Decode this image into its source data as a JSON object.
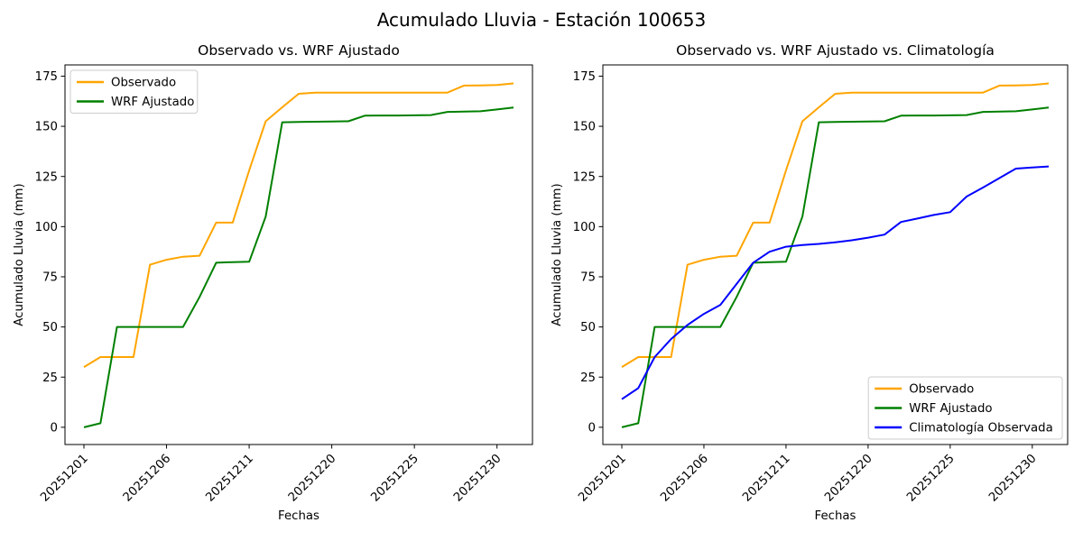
{
  "figure": {
    "suptitle": "Acumulado Lluvia - Estación 100653"
  },
  "chart_data": [
    {
      "type": "line",
      "title": "Observado vs. WRF Ajustado",
      "xlabel": "Fechas",
      "ylabel": "Acumulado Lluvia (mm)",
      "n_points": 27,
      "ylim": [
        -8.6,
        180.6
      ],
      "y_ticks": [
        0,
        25,
        50,
        75,
        100,
        125,
        150,
        175
      ],
      "x_tick_indices": [
        0,
        5,
        10,
        15,
        20,
        25
      ],
      "x_tick_labels": [
        "20251201",
        "20251206",
        "20251211",
        "20251220",
        "20251225",
        "20251230"
      ],
      "grid": false,
      "legend_position": "upper-left",
      "series": [
        {
          "name": "Observado",
          "color": "#FFA500",
          "values": [
            30,
            35,
            35,
            35,
            81,
            83.5,
            85,
            85.5,
            102,
            102,
            128,
            152.5,
            159.5,
            166.2,
            166.8,
            166.8,
            166.8,
            166.8,
            166.8,
            166.8,
            166.8,
            166.8,
            166.8,
            170.3,
            170.4,
            170.6,
            171.4
          ]
        },
        {
          "name": "WRF Ajustado",
          "color": "#008000",
          "values": [
            0,
            2,
            50,
            50,
            50,
            50,
            50,
            65,
            82,
            82.3,
            82.5,
            105,
            152,
            152.2,
            152.3,
            152.4,
            152.5,
            155.3,
            155.4,
            155.4,
            155.5,
            155.6,
            157.2,
            157.3,
            157.5,
            158.4,
            159.4
          ]
        }
      ]
    },
    {
      "type": "line",
      "title": "Observado vs. WRF Ajustado vs. Climatología",
      "xlabel": "Fechas",
      "ylabel": "Acumulado Lluvia (mm)",
      "n_points": 27,
      "ylim": [
        -8.6,
        180.6
      ],
      "y_ticks": [
        0,
        25,
        50,
        75,
        100,
        125,
        150,
        175
      ],
      "x_tick_indices": [
        0,
        5,
        10,
        15,
        20,
        25
      ],
      "x_tick_labels": [
        "20251201",
        "20251206",
        "20251211",
        "20251220",
        "20251225",
        "20251230"
      ],
      "grid": false,
      "legend_position": "lower-right",
      "series": [
        {
          "name": "Observado",
          "color": "#FFA500",
          "values": [
            30,
            35,
            35,
            35,
            81,
            83.5,
            85,
            85.5,
            102,
            102,
            128,
            152.5,
            159.5,
            166.2,
            166.8,
            166.8,
            166.8,
            166.8,
            166.8,
            166.8,
            166.8,
            166.8,
            166.8,
            170.3,
            170.4,
            170.6,
            171.4
          ]
        },
        {
          "name": "WRF Ajustado",
          "color": "#008000",
          "values": [
            0,
            2,
            50,
            50,
            50,
            50,
            50,
            65,
            82,
            82.3,
            82.5,
            105,
            152,
            152.2,
            152.3,
            152.4,
            152.5,
            155.3,
            155.4,
            155.4,
            155.5,
            155.6,
            157.2,
            157.3,
            157.5,
            158.4,
            159.4
          ]
        },
        {
          "name": "Climatología Observada",
          "color": "#0000FF",
          "values": [
            14,
            19.5,
            35,
            44,
            51,
            56.5,
            61,
            71.5,
            82,
            87.5,
            90,
            90.8,
            91.4,
            92.2,
            93.2,
            94.5,
            96,
            102.3,
            104,
            105.8,
            107.2,
            115,
            119.5,
            124.2,
            128.9,
            129.5,
            130
          ]
        }
      ]
    }
  ]
}
